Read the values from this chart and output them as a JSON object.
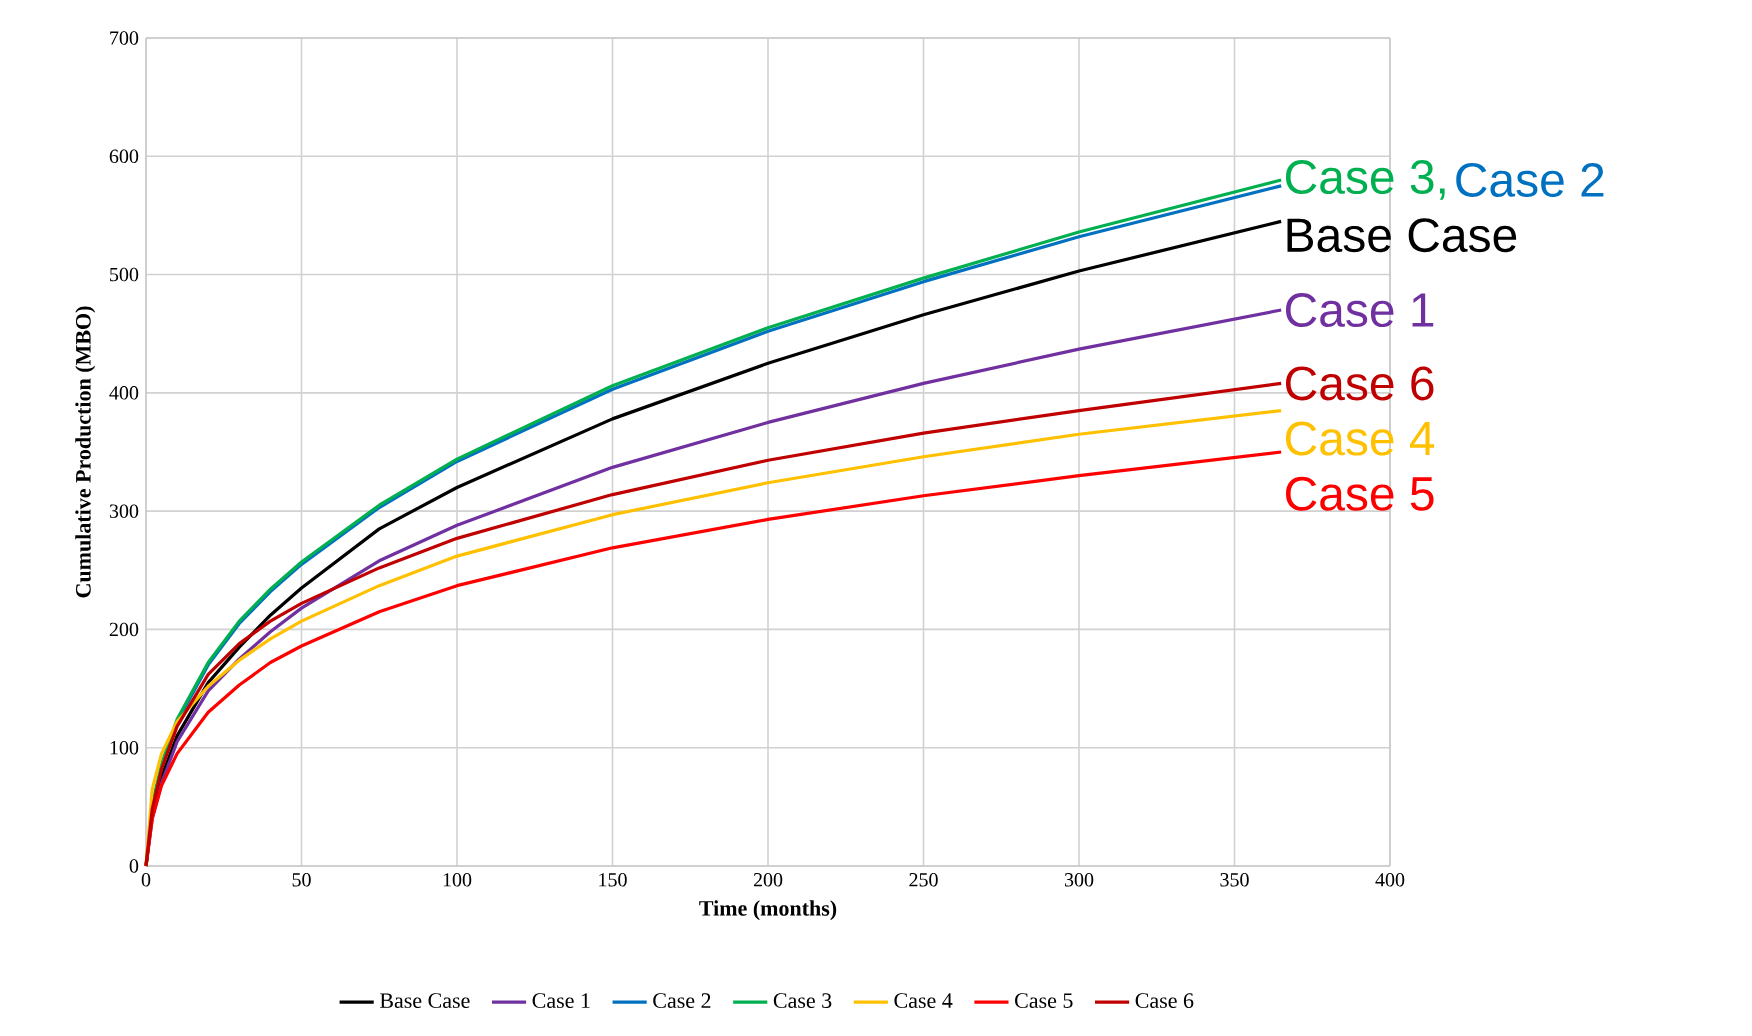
{
  "chart_data": {
    "type": "line",
    "xlabel": "Time (months)",
    "ylabel": "Cumulative Production (MBO)",
    "xlim": [
      0,
      400
    ],
    "xticks": [
      0,
      50,
      100,
      150,
      200,
      250,
      300,
      350,
      400
    ],
    "ylim": [
      0,
      700
    ],
    "yticks": [
      0,
      100,
      200,
      300,
      400,
      500,
      600,
      700
    ],
    "grid": true,
    "legend": "bottom",
    "x": [
      0,
      2,
      5,
      10,
      20,
      30,
      40,
      50,
      75,
      100,
      150,
      200,
      250,
      300,
      365
    ],
    "series": [
      {
        "name": "Base Case",
        "color": "#000000",
        "values": [
          0,
          45,
          75,
          110,
          155,
          185,
          212,
          235,
          285,
          320,
          378,
          425,
          466,
          503,
          545
        ]
      },
      {
        "name": "Case 1",
        "color": "#7030a0",
        "values": [
          0,
          40,
          70,
          105,
          148,
          175,
          198,
          218,
          258,
          288,
          337,
          375,
          408,
          437,
          470
        ]
      },
      {
        "name": "Case 2",
        "color": "#0070c0",
        "values": [
          null,
          null,
          85,
          122,
          170,
          205,
          232,
          255,
          303,
          342,
          403,
          452,
          494,
          532,
          575
        ]
      },
      {
        "name": "Case 3",
        "color": "#00b050",
        "values": [
          0,
          52,
          86,
          124,
          172,
          207,
          234,
          257,
          305,
          344,
          406,
          455,
          497,
          536,
          580
        ]
      },
      {
        "name": "Case 4",
        "color": "#ffc000",
        "values": [
          0,
          65,
          95,
          122,
          152,
          174,
          192,
          207,
          237,
          262,
          297,
          324,
          346,
          365,
          385
        ]
      },
      {
        "name": "Case 5",
        "color": "#ff0000",
        "values": [
          0,
          40,
          68,
          95,
          130,
          153,
          172,
          186,
          215,
          237,
          269,
          293,
          313,
          330,
          350
        ]
      },
      {
        "name": "Case 6",
        "color": "#c00000",
        "values": [
          0,
          48,
          82,
          118,
          162,
          188,
          207,
          222,
          252,
          277,
          314,
          343,
          366,
          385,
          408
        ]
      }
    ],
    "annotations": [
      "Case 3,",
      "Case 2",
      "Base Case",
      "Case 1",
      "Case 6",
      "Case 4",
      "Case 5"
    ]
  }
}
